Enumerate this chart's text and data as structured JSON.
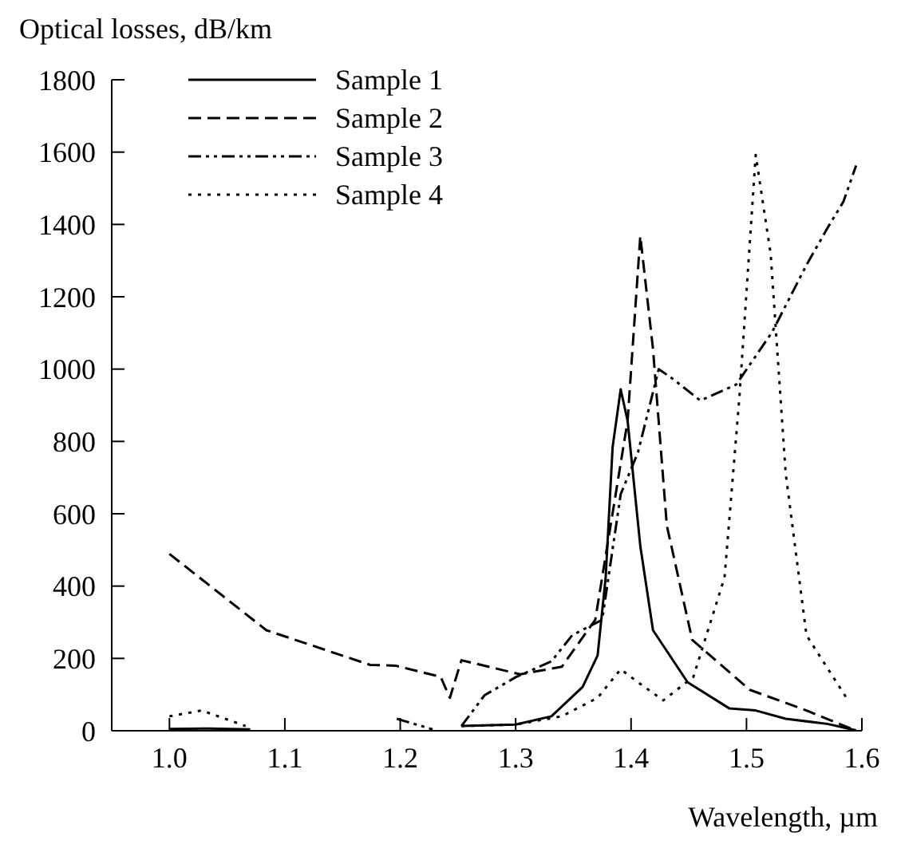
{
  "chart_data": {
    "type": "line",
    "ylabel": "Optical losses, dB/km",
    "xlabel": "Wavelength, µm",
    "xlim": [
      0.95,
      1.6
    ],
    "xticks": [
      {
        "value": 1,
        "label": "1.0"
      },
      1.1,
      1.2,
      1.3,
      1.4,
      1.5,
      1.6
    ],
    "ylim": [
      0,
      1800
    ],
    "yticks": [
      0,
      200,
      400,
      600,
      800,
      1000,
      1200,
      1400,
      1600,
      1800
    ],
    "legend": "top left",
    "grid": false,
    "marker": "none",
    "series": [
      {
        "name": "Sample 1",
        "color": "#000000",
        "line_style": "solid",
        "x": [
          1.0,
          1.035,
          1.07,
          1.16,
          1.253,
          1.3,
          1.331,
          1.358,
          1.371,
          1.378,
          1.384,
          1.391,
          1.397,
          1.408,
          1.419,
          1.449,
          1.485,
          1.508,
          1.534,
          1.57,
          1.595
        ],
        "values": [
          5,
          6,
          4,
          null,
          13,
          17,
          40,
          121,
          208,
          424,
          784,
          944,
          857,
          511,
          278,
          134,
          62,
          56,
          33,
          19,
          1
        ]
      },
      {
        "name": "Sample 2",
        "color": "#000000",
        "line_style": "dashed",
        "x": [
          1.0,
          1.084,
          1.174,
          1.196,
          1.235,
          1.243,
          1.253,
          1.304,
          1.34,
          1.369,
          1.397,
          1.408,
          1.419,
          1.431,
          1.453,
          1.503,
          1.552,
          1.592
        ],
        "values": [
          489,
          278,
          182,
          180,
          149,
          91,
          195,
          156,
          177,
          307,
          857,
          1368,
          1056,
          567,
          251,
          113,
          56,
          4
        ]
      },
      {
        "name": "Sample 3",
        "color": "#000000",
        "line_style": "dashdot",
        "x": [
          1.197,
          1.228,
          1.24,
          1.253,
          1.273,
          1.3,
          1.331,
          1.349,
          1.375,
          1.391,
          1.406,
          1.424,
          1.437,
          1.46,
          1.491,
          1.522,
          1.552,
          1.57,
          1.584,
          1.595
        ],
        "values": [
          33,
          4,
          null,
          13,
          98,
          148,
          192,
          264,
          307,
          654,
          770,
          1000,
          971,
          913,
          957,
          1101,
          1288,
          1389,
          1463,
          1563
        ]
      },
      {
        "name": "Sample 4",
        "color": "#000000",
        "line_style": "dotted",
        "x": [
          1.0,
          1.028,
          1.066,
          1.16,
          1.253,
          1.3,
          1.34,
          1.371,
          1.391,
          1.406,
          1.428,
          1.454,
          1.481,
          1.494,
          1.508,
          1.521,
          1.534,
          1.552,
          1.588
        ],
        "values": [
          40,
          56,
          13,
          null,
          13,
          17,
          40,
          91,
          170,
          134,
          84,
          149,
          424,
          928,
          1592,
          1317,
          711,
          264,
          84
        ]
      }
    ]
  }
}
